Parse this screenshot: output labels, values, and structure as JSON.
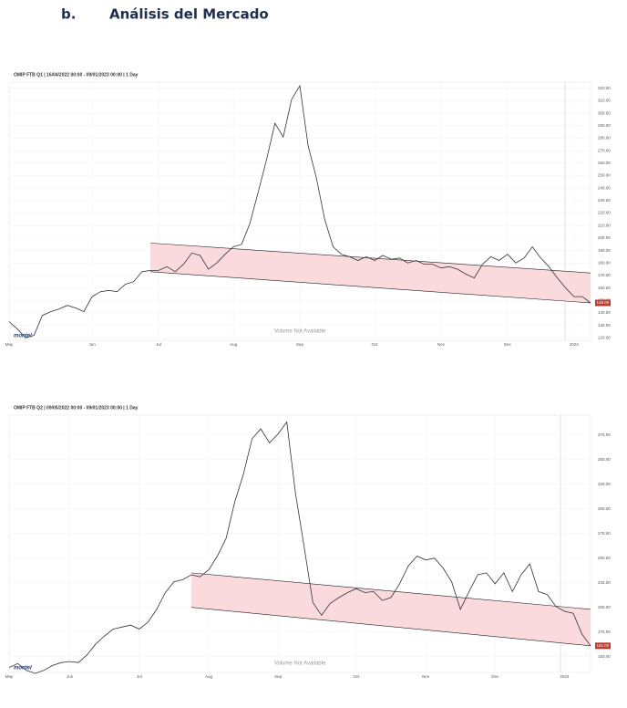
{
  "heading": {
    "number": "b.",
    "title": "Análisis del Mercado"
  },
  "chart_data": [
    {
      "type": "line",
      "title": "OMIP FTB Q1 | 16/04/2022 00:00 - 09/01/2023 00:00 | 1 Day",
      "values": [
        133,
        127,
        120,
        122,
        138,
        141,
        143,
        146,
        144,
        141,
        153,
        157,
        158,
        157,
        163,
        165,
        173,
        174,
        174,
        177,
        173,
        179,
        188,
        186,
        175,
        180,
        187,
        193,
        195,
        212,
        237,
        263,
        292,
        281,
        311,
        322,
        274,
        248,
        215,
        193,
        187,
        185,
        182,
        185,
        182,
        186,
        183,
        184,
        180,
        182,
        179,
        179,
        176,
        177,
        175,
        171,
        168,
        179,
        185,
        182,
        187,
        180,
        184,
        193,
        184,
        177,
        168,
        160,
        153,
        153,
        148
      ],
      "color": "#333333",
      "xlim": [
        0,
        70
      ],
      "xticks": [
        {
          "value": 0,
          "label": "May"
        },
        {
          "value": 10,
          "label": "Jun"
        },
        {
          "value": 18,
          "label": "Jul"
        },
        {
          "value": 27,
          "label": "Aug"
        },
        {
          "value": 35,
          "label": "Sep"
        },
        {
          "value": 44,
          "label": "Oct"
        },
        {
          "value": 52,
          "label": "Nov"
        },
        {
          "value": 60,
          "label": "Dec"
        },
        {
          "value": 68,
          "label": "2023"
        }
      ],
      "ylim": [
        118,
        325
      ],
      "yticks": [
        {
          "value": 120,
          "label": "120.00"
        },
        {
          "value": 130,
          "label": "130.00"
        },
        {
          "value": 140,
          "label": "140.00"
        },
        {
          "value": 150,
          "label": "150.00"
        },
        {
          "value": 160,
          "label": "160.00"
        },
        {
          "value": 170,
          "label": "170.00"
        },
        {
          "value": 180,
          "label": "180.00"
        },
        {
          "value": 190,
          "label": "190.00"
        },
        {
          "value": 200,
          "label": "200.00"
        },
        {
          "value": 210,
          "label": "210.00"
        },
        {
          "value": 220,
          "label": "220.00"
        },
        {
          "value": 230,
          "label": "230.00"
        },
        {
          "value": 240,
          "label": "240.00"
        },
        {
          "value": 250,
          "label": "250.00"
        },
        {
          "value": 260,
          "label": "260.00"
        },
        {
          "value": 270,
          "label": "270.00"
        },
        {
          "value": 280,
          "label": "280.00"
        },
        {
          "value": 290,
          "label": "290.00"
        },
        {
          "value": 300,
          "label": "300.00"
        },
        {
          "value": 310,
          "label": "310.00"
        },
        {
          "value": 320,
          "label": "320.00"
        }
      ],
      "grid": true,
      "last_price": {
        "value": 148,
        "label": "148.00"
      },
      "channel": {
        "start": 17,
        "end": 70,
        "upper": [
          196,
          172
        ],
        "lower": [
          173,
          148
        ],
        "color": "#fadadd"
      },
      "watermark": "Volume Not Available",
      "logo": "montel"
    },
    {
      "type": "line",
      "title": "OMIP FTB Q2 | 09/05/2022 00:00 - 09/01/2023 00:00 | 1 Day",
      "values": [
        139,
        143,
        136,
        133,
        136,
        141,
        144,
        145,
        144,
        152,
        163,
        171,
        178,
        180,
        182,
        178,
        185,
        198,
        215,
        226,
        228,
        233,
        231,
        238,
        252,
        270,
        307,
        335,
        371,
        381,
        367,
        376,
        388,
        316,
        261,
        205,
        192,
        204,
        210,
        215,
        219,
        215,
        216,
        207,
        210,
        224,
        242,
        252,
        248,
        250,
        240,
        226,
        198,
        216,
        233,
        235,
        224,
        235,
        216,
        233,
        244,
        216,
        213,
        201,
        196,
        194,
        173,
        161
      ],
      "color": "#333333",
      "xlim": [
        0,
        67
      ],
      "xticks": [
        {
          "value": 0,
          "label": "May"
        },
        {
          "value": 7,
          "label": "Jun"
        },
        {
          "value": 15,
          "label": "Jul"
        },
        {
          "value": 23,
          "label": "Aug"
        },
        {
          "value": 31,
          "label": "Sep"
        },
        {
          "value": 40,
          "label": "Oct"
        },
        {
          "value": 48,
          "label": "Nov"
        },
        {
          "value": 56,
          "label": "Dec"
        },
        {
          "value": 64,
          "label": "2023"
        }
      ],
      "ylim": [
        134,
        395
      ],
      "yticks": [
        {
          "value": 150,
          "label": "150.00"
        },
        {
          "value": 175,
          "label": "175.00"
        },
        {
          "value": 200,
          "label": "200.00"
        },
        {
          "value": 225,
          "label": "225.00"
        },
        {
          "value": 250,
          "label": "250.00"
        },
        {
          "value": 275,
          "label": "275.00"
        },
        {
          "value": 300,
          "label": "300.00"
        },
        {
          "value": 325,
          "label": "325.00"
        },
        {
          "value": 350,
          "label": "350.00"
        },
        {
          "value": 375,
          "label": "375.00"
        }
      ],
      "grid": true,
      "last_price": {
        "value": 161,
        "label": "161.00"
      },
      "channel": {
        "start": 21,
        "end": 67,
        "upper": [
          235,
          198
        ],
        "lower": [
          200,
          161
        ],
        "color": "#fadadd"
      },
      "watermark": "Volume Not Available",
      "logo": "montel"
    }
  ]
}
